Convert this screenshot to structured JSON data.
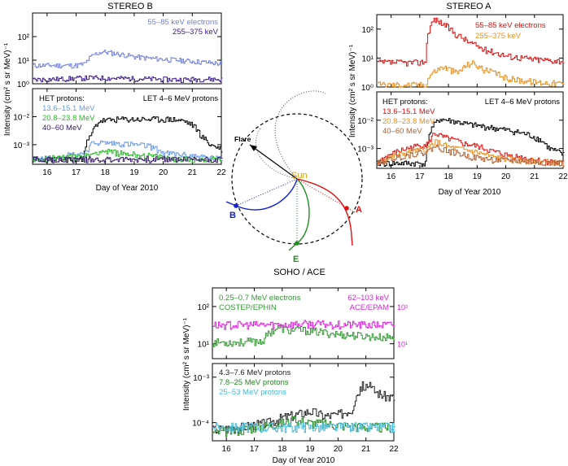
{
  "chart_data": [
    {
      "id": "stereo_b",
      "type": "line",
      "title": "STEREO B",
      "xlabel": "Day of Year 2010",
      "ylabel": "Intensity  (cm² s sr MeV)⁻¹",
      "xlim": [
        15.5,
        22
      ],
      "xticks": [
        "16",
        "17",
        "18",
        "19",
        "20",
        "21",
        "22"
      ],
      "upper": {
        "ylim_log": [
          0,
          3
        ],
        "yticks": [
          "10⁰",
          "10¹",
          "10²"
        ],
        "series": [
          {
            "name": "55–85 keV electrons",
            "color": "#7080e0",
            "x": [
              15.5,
              17.0,
              17.3,
              17.6,
              17.9,
              18.5,
              19.0,
              19.5,
              20.0,
              20.5,
              21.0,
              21.5,
              22.0
            ],
            "values": [
              6,
              6,
              7,
              17,
              23,
              18,
              14,
              12,
              11,
              10,
              9,
              8,
              7
            ]
          },
          {
            "name": "255–375 keV",
            "color": "#3a1a8a",
            "x": [
              15.5,
              16.5,
              17.5,
              18.5,
              19.5,
              20.5,
              21.5,
              22.0
            ],
            "values": [
              1.5,
              1.6,
              1.8,
              1.7,
              1.6,
              1.5,
              1.6,
              1.5
            ]
          }
        ]
      },
      "lower": {
        "ylim_log": [
          -3.7,
          -1
        ],
        "yticks": [
          "10⁻³",
          "10⁻²"
        ],
        "legend_title": "HET protons:",
        "annotation": "LET 4–6 MeV protons",
        "series": [
          {
            "name": "LET 4–6 MeV protons",
            "color": "#000000",
            "x": [
              15.5,
              17.2,
              17.5,
              17.8,
              18.5,
              19.5,
              20.3,
              20.7,
              21.0,
              21.3,
              21.6,
              22.0
            ],
            "values": [
              0.0003,
              0.0003,
              0.002,
              0.007,
              0.008,
              0.008,
              0.008,
              0.007,
              0.005,
              0.002,
              0.001,
              0.0007
            ]
          },
          {
            "name": "13.6–15.1 MeV",
            "color": "#6a9ae8",
            "x": [
              15.5,
              17.3,
              17.6,
              18.5,
              19.5,
              20.0,
              21.0,
              22.0
            ],
            "values": [
              0.0003,
              0.0005,
              0.0012,
              0.0011,
              0.0009,
              0.0005,
              0.0004,
              0.0003
            ]
          },
          {
            "name": "20.8–23.8 MeV",
            "color": "#22bb22",
            "x": [
              15.5,
              17.4,
              17.8,
              18.5,
              19.5,
              20.5,
              22.0
            ],
            "values": [
              0.0003,
              0.0004,
              0.0006,
              0.0005,
              0.0004,
              0.0003,
              0.0003
            ]
          },
          {
            "name": "40–60 MeV",
            "color": "#3a1a6a",
            "x": [
              15.5,
              22.0
            ],
            "values": [
              0.0003,
              0.0003
            ]
          }
        ]
      }
    },
    {
      "id": "stereo_a",
      "type": "line",
      "title": "STEREO A",
      "xlabel": "Day of Year 2010",
      "ylabel": "Intensity  (cm² s sr MeV)⁻¹",
      "xlim": [
        15.5,
        22
      ],
      "xticks": [
        "16",
        "17",
        "18",
        "19",
        "20",
        "21",
        "22"
      ],
      "upper": {
        "ylim_log": [
          0,
          2.5
        ],
        "yticks": [
          "10⁰",
          "10¹",
          "10²"
        ],
        "series": [
          {
            "name": "55–85 keV electrons",
            "color": "#e01010",
            "x": [
              15.5,
              17.0,
              17.2,
              17.35,
              17.5,
              17.8,
              18.2,
              18.7,
              19.2,
              20.0,
              21.0,
              22.0
            ],
            "values": [
              7,
              7,
              8,
              120,
              220,
              150,
              70,
              35,
              20,
              12,
              9,
              8
            ]
          },
          {
            "name": "255–375 keV",
            "color": "#e89020",
            "x": [
              15.5,
              17.2,
              17.4,
              17.8,
              18.3,
              18.8,
              19.2,
              20.0,
              21.0,
              22.0
            ],
            "values": [
              1.2,
              1.2,
              3,
              5,
              3,
              7,
              4,
              2,
              1.5,
              1.3
            ]
          }
        ]
      },
      "lower": {
        "ylim_log": [
          -3.7,
          -1
        ],
        "yticks": [
          "10⁻³",
          "10⁻²"
        ],
        "legend_title": "HET protons:",
        "annotation": "LET 4–6 MeV protons",
        "series": [
          {
            "name": "LET 4–6 MeV protons",
            "color": "#000000",
            "x": [
              15.5,
              17.2,
              17.4,
              17.7,
              18.2,
              18.7,
              19.2,
              19.7,
              20.3,
              20.8,
              21.2,
              21.5,
              22.0
            ],
            "values": [
              0.0003,
              0.0003,
              0.005,
              0.011,
              0.009,
              0.007,
              0.006,
              0.005,
              0.004,
              0.003,
              0.002,
              0.001,
              0.0006
            ]
          },
          {
            "name": "13.6–15.1 MeV",
            "color": "#e01010",
            "x": [
              15.5,
              17.3,
              17.5,
              17.8,
              18.5,
              19.0,
              19.5,
              20.0,
              20.5,
              21.0,
              22.0
            ],
            "values": [
              0.0003,
              0.0015,
              0.0035,
              0.0025,
              0.0015,
              0.0012,
              0.0008,
              0.0006,
              0.0005,
              0.0004,
              0.0003
            ]
          },
          {
            "name": "20.8–23.8 MeV",
            "color": "#e89020",
            "x": [
              15.5,
              17.3,
              17.5,
              18.0,
              18.8,
              19.5,
              20.3,
              22.0
            ],
            "values": [
              0.0003,
              0.001,
              0.0018,
              0.0011,
              0.0008,
              0.0005,
              0.0004,
              0.0003
            ]
          },
          {
            "name": "40–60 MeV",
            "color": "#b06030",
            "x": [
              15.5,
              17.3,
              17.5,
              18.0,
              18.8,
              19.5,
              22.0
            ],
            "values": [
              0.0003,
              0.0008,
              0.0012,
              0.0008,
              0.0005,
              0.0004,
              0.0003
            ]
          }
        ]
      }
    },
    {
      "id": "soho_ace",
      "type": "line",
      "title": "SOHO / ACE",
      "xlabel": "Day of Year 2010",
      "ylabel": "Intensity  (cm² s sr MeV)⁻¹",
      "xlim": [
        15.5,
        22
      ],
      "xticks": [
        "16",
        "17",
        "18",
        "19",
        "20",
        "21",
        "22"
      ],
      "upper": {
        "ylim_log": [
          0.6,
          2.5
        ],
        "yticks": [
          "10¹",
          "10²"
        ],
        "right_yticks": [
          "10¹",
          "10²"
        ],
        "series": [
          {
            "name": "0.25–0.7 MeV electrons",
            "label2": "COSTEP/EPHIN",
            "color": "#339933",
            "x": [
              15.5,
              16.5,
              17.3,
              17.6,
              17.9,
              18.2,
              18.5,
              19.0,
              19.5,
              20.0,
              20.5,
              21.0,
              21.5,
              22.0
            ],
            "values": [
              11,
              11,
              12,
              22,
              28,
              22,
              24,
              22,
              20,
              18,
              17,
              16,
              15,
              15
            ]
          },
          {
            "name": "62–103 keV",
            "label2": "ACE/EPAM",
            "color": "#dd22dd",
            "x": [
              15.5,
              17.0,
              18.0,
              19.0,
              20.0,
              21.0,
              22.0
            ],
            "values": [
              32,
              32,
              33,
              34,
              33,
              32,
              32
            ]
          }
        ]
      },
      "lower": {
        "ylim_log": [
          -4.4,
          -2.7
        ],
        "yticks": [
          "10⁻⁴",
          "10⁻³"
        ],
        "series": [
          {
            "name": "4.3–7.6 MeV protons",
            "color": "#222222",
            "x": [
              15.5,
              16.5,
              17.5,
              18.0,
              18.5,
              19.0,
              19.5,
              20.0,
              20.5,
              20.8,
              21.0,
              21.3,
              21.6,
              22.0
            ],
            "values": [
              7e-05,
              8e-05,
              0.0001,
              0.00013,
              0.00015,
              0.00018,
              0.00014,
              0.00015,
              0.0002,
              0.0006,
              0.0007,
              0.0005,
              0.0004,
              0.00035
            ]
          },
          {
            "name": "7.8–25 MeV protons",
            "color": "#228822",
            "x": [
              15.5,
              16.5,
              17.5,
              18.0,
              18.5,
              19.0,
              20.0,
              21.0,
              22.0
            ],
            "values": [
              6e-05,
              7e-05,
              9e-05,
              0.0001,
              0.00011,
              0.0001,
              9e-05,
              8e-05,
              8e-05
            ]
          },
          {
            "name": "25–53 MeV protons",
            "color": "#44bbdd",
            "x": [
              15.5,
              17.0,
              18.0,
              19.0,
              20.0,
              21.0,
              22.0
            ],
            "values": [
              8e-05,
              8e-05,
              8e-05,
              8e-05,
              8e-05,
              8e-05,
              8e-05
            ]
          }
        ]
      }
    }
  ],
  "diagram": {
    "sun": "Sun",
    "flare": "Flare",
    "a": "A",
    "b": "B",
    "e": "E",
    "colors": {
      "a": "#e01010",
      "b": "#1020d0",
      "e": "#209020",
      "sun": "#d4a010"
    }
  }
}
